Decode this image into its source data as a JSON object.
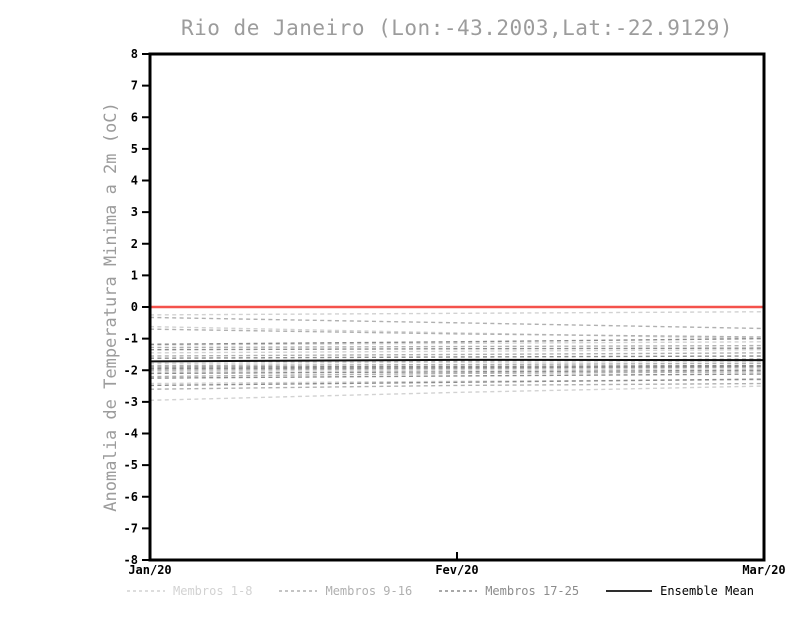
{
  "chart_data": {
    "type": "line",
    "title": "Rio de Janeiro (Lon:-43.2003,Lat:-22.9129)",
    "ylabel": "Anomalia de Temperatura Minima a 2m (oC)",
    "xlabel": "",
    "x": [
      0,
      1,
      2
    ],
    "x_ticklabels": [
      "Jan/20",
      "Fev/20",
      "Mar/20"
    ],
    "ylim": [
      -8,
      8
    ],
    "yticks": [
      8,
      7,
      6,
      5,
      4,
      3,
      2,
      1,
      0,
      -1,
      -2,
      -3,
      -4,
      -5,
      -6,
      -7,
      -8
    ],
    "grid": false,
    "legend_position": "bottom",
    "zero_line_value": 0,
    "colors": {
      "zero_line": "#f4524c",
      "axis": "#000000",
      "title_text": "#9c9c9c",
      "group1": "#d2d2d2",
      "group2": "#b0b0b0",
      "group3": "#8c8c8c",
      "mean": "#111111"
    },
    "series_groups": [
      {
        "name": "Membros 1-8",
        "style": "dashed",
        "color_key": "group1",
        "members": [
          [
            -0.25,
            -0.2,
            -0.15
          ],
          [
            -0.62,
            -0.82,
            -1.0
          ],
          [
            -1.2,
            -1.15,
            -1.1
          ],
          [
            -1.45,
            -1.4,
            -1.35
          ],
          [
            -1.78,
            -1.75,
            -1.72
          ],
          [
            -2.05,
            -2.0,
            -1.95
          ],
          [
            -2.42,
            -2.35,
            -2.3
          ],
          [
            -2.95,
            -2.7,
            -2.5
          ]
        ]
      },
      {
        "name": "Membros 9-16",
        "style": "dashed",
        "color_key": "group2",
        "members": [
          [
            -0.33,
            -0.5,
            -0.68
          ],
          [
            -0.7,
            -0.85,
            -0.95
          ],
          [
            -1.28,
            -1.25,
            -1.22
          ],
          [
            -1.55,
            -1.5,
            -1.45
          ],
          [
            -1.85,
            -1.82,
            -1.78
          ],
          [
            -2.0,
            -1.95,
            -1.9
          ],
          [
            -2.2,
            -2.1,
            -2.05
          ],
          [
            -2.6,
            -2.48,
            -2.42
          ]
        ]
      },
      {
        "name": "Membros 17-25",
        "style": "dashed",
        "color_key": "group3",
        "members": [
          [
            -1.18,
            -1.1,
            -1.0
          ],
          [
            -1.35,
            -1.32,
            -1.3
          ],
          [
            -1.62,
            -1.58,
            -1.55
          ],
          [
            -1.72,
            -1.7,
            -1.65
          ],
          [
            -1.9,
            -1.88,
            -1.85
          ],
          [
            -1.95,
            -1.92,
            -1.88
          ],
          [
            -2.1,
            -2.05,
            -2.0
          ],
          [
            -2.25,
            -2.18,
            -2.12
          ],
          [
            -2.48,
            -2.38,
            -2.28
          ]
        ]
      },
      {
        "name": "Ensemble Mean",
        "style": "solid",
        "color_key": "mean",
        "members": [
          [
            -1.72,
            -1.67,
            -1.68
          ]
        ]
      }
    ]
  }
}
